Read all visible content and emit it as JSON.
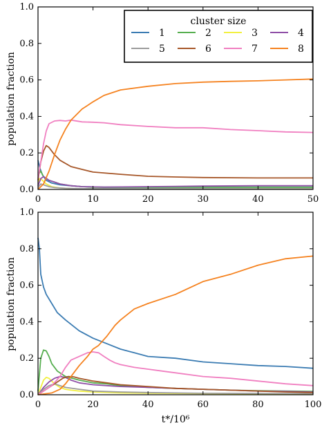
{
  "figure": {
    "xlabel": "t*/10⁶",
    "legend_title": "cluster size"
  },
  "series_meta": [
    {
      "name": "1",
      "color": "#3a7bb2"
    },
    {
      "name": "2",
      "color": "#56ae4f"
    },
    {
      "name": "3",
      "color": "#f2f040"
    },
    {
      "name": "4",
      "color": "#8e4ea6"
    },
    {
      "name": "5",
      "color": "#9b9b9b"
    },
    {
      "name": "6",
      "color": "#a65628"
    },
    {
      "name": "7",
      "color": "#f07ec0"
    },
    {
      "name": "8",
      "color": "#f5821f"
    }
  ],
  "chart_data": [
    {
      "type": "line",
      "title": "",
      "xlabel": "",
      "ylabel": "population fraction",
      "xlim": [
        0,
        50
      ],
      "ylim": [
        0,
        1.0
      ],
      "xticks": [
        "0",
        "10",
        "20",
        "30",
        "40",
        "50"
      ],
      "yticks": [
        "0.0",
        "0.2",
        "0.4",
        "0.6",
        "0.8",
        "1.0"
      ],
      "grid": false,
      "legend": "top-right",
      "series": [
        {
          "name": "1",
          "x": [
            0,
            0.3,
            0.8,
            1.5,
            2.5,
            4,
            6,
            8,
            12,
            20,
            30,
            40,
            50
          ],
          "y": [
            0.16,
            0.12,
            0.08,
            0.05,
            0.035,
            0.025,
            0.02,
            0.015,
            0.012,
            0.012,
            0.012,
            0.012,
            0.012
          ]
        },
        {
          "name": "2",
          "x": [
            0,
            0.5,
            1,
            2,
            3,
            4,
            5,
            6,
            8,
            10,
            20,
            30,
            40,
            50
          ],
          "y": [
            0.08,
            0.1,
            0.07,
            0.05,
            0.04,
            0.03,
            0.025,
            0.02,
            0.015,
            0.012,
            0.012,
            0.012,
            0.012,
            0.012
          ]
        },
        {
          "name": "3",
          "x": [
            0,
            0.3,
            0.8,
            1.5,
            2.5,
            4,
            6,
            10,
            50
          ],
          "y": [
            0.04,
            0.06,
            0.05,
            0.03,
            0.015,
            0.008,
            0.004,
            0.003,
            0.003
          ]
        },
        {
          "name": "4",
          "x": [
            0,
            0.5,
            1,
            2,
            3,
            4,
            6,
            8,
            12,
            20,
            30,
            40,
            50
          ],
          "y": [
            0.02,
            0.06,
            0.07,
            0.05,
            0.04,
            0.03,
            0.02,
            0.015,
            0.013,
            0.015,
            0.018,
            0.02,
            0.02
          ]
        },
        {
          "name": "5",
          "x": [
            0,
            0.5,
            1,
            2,
            3,
            5,
            8,
            50
          ],
          "y": [
            0.01,
            0.03,
            0.025,
            0.015,
            0.01,
            0.006,
            0.004,
            0.003
          ]
        },
        {
          "name": "6",
          "x": [
            0,
            0.5,
            1,
            1.5,
            2,
            3,
            4,
            6,
            8,
            10,
            15,
            20,
            25,
            30,
            40,
            50
          ],
          "y": [
            0.05,
            0.15,
            0.21,
            0.24,
            0.23,
            0.19,
            0.16,
            0.125,
            0.11,
            0.095,
            0.083,
            0.072,
            0.068,
            0.065,
            0.063,
            0.063
          ]
        },
        {
          "name": "7",
          "x": [
            0,
            0.5,
            1,
            1.5,
            2,
            3,
            4,
            5,
            6,
            8,
            10,
            12,
            15,
            20,
            25,
            30,
            35,
            40,
            45,
            50
          ],
          "y": [
            0.06,
            0.15,
            0.25,
            0.32,
            0.36,
            0.375,
            0.378,
            0.375,
            0.38,
            0.37,
            0.368,
            0.365,
            0.355,
            0.345,
            0.338,
            0.338,
            0.328,
            0.322,
            0.315,
            0.312
          ]
        },
        {
          "name": "8",
          "x": [
            0,
            1,
            2,
            3,
            4,
            5,
            6,
            8,
            10,
            12,
            15,
            20,
            25,
            30,
            35,
            40,
            45,
            50
          ],
          "y": [
            0.0,
            0.03,
            0.1,
            0.19,
            0.27,
            0.33,
            0.38,
            0.44,
            0.48,
            0.515,
            0.545,
            0.565,
            0.58,
            0.588,
            0.592,
            0.595,
            0.6,
            0.605
          ]
        }
      ]
    },
    {
      "type": "line",
      "title": "",
      "xlabel": "t*/10⁶",
      "ylabel": "population fraction",
      "xlim": [
        0,
        100
      ],
      "ylim": [
        0,
        1.0
      ],
      "xticks": [
        "0",
        "20",
        "40",
        "60",
        "80",
        "100"
      ],
      "yticks": [
        "0.0",
        "0.2",
        "0.4",
        "0.6",
        "0.8",
        "1.0"
      ],
      "grid": false,
      "legend": "none",
      "series": [
        {
          "name": "1",
          "x": [
            0,
            0.5,
            1,
            2,
            3,
            5,
            7,
            10,
            15,
            20,
            25,
            30,
            35,
            40,
            50,
            60,
            70,
            80,
            90,
            100
          ],
          "y": [
            0.86,
            0.8,
            0.66,
            0.59,
            0.55,
            0.5,
            0.45,
            0.41,
            0.35,
            0.31,
            0.28,
            0.25,
            0.23,
            0.21,
            0.2,
            0.18,
            0.17,
            0.16,
            0.155,
            0.145
          ]
        },
        {
          "name": "2",
          "x": [
            0,
            1,
            2,
            3,
            4,
            5,
            7,
            10,
            15,
            20,
            25,
            30,
            40,
            50,
            60,
            70,
            80,
            90,
            100
          ],
          "y": [
            0.02,
            0.2,
            0.245,
            0.24,
            0.21,
            0.17,
            0.13,
            0.1,
            0.08,
            0.065,
            0.06,
            0.05,
            0.04,
            0.035,
            0.03,
            0.025,
            0.022,
            0.02,
            0.018
          ]
        },
        {
          "name": "3",
          "x": [
            0,
            1,
            2,
            3,
            4,
            6,
            8,
            10,
            12,
            15,
            20,
            30,
            40,
            60,
            80,
            100
          ],
          "y": [
            0.0,
            0.04,
            0.08,
            0.095,
            0.09,
            0.06,
            0.04,
            0.03,
            0.025,
            0.02,
            0.015,
            0.01,
            0.008,
            0.006,
            0.005,
            0.005
          ]
        },
        {
          "name": "4",
          "x": [
            0,
            2,
            4,
            6,
            8,
            10,
            12,
            15,
            20,
            25,
            30,
            40,
            50,
            60,
            70,
            80,
            90,
            100
          ],
          "y": [
            0.0,
            0.04,
            0.07,
            0.09,
            0.1,
            0.095,
            0.08,
            0.065,
            0.055,
            0.05,
            0.045,
            0.04,
            0.035,
            0.03,
            0.025,
            0.02,
            0.018,
            0.015
          ]
        },
        {
          "name": "5",
          "x": [
            0,
            2,
            4,
            6,
            8,
            10,
            15,
            20,
            30,
            40,
            50,
            60,
            80,
            100
          ],
          "y": [
            0.0,
            0.03,
            0.05,
            0.06,
            0.05,
            0.04,
            0.03,
            0.02,
            0.015,
            0.012,
            0.01,
            0.008,
            0.007,
            0.006
          ]
        },
        {
          "name": "6",
          "x": [
            0,
            3,
            6,
            9,
            11,
            13,
            15,
            20,
            25,
            30,
            40,
            50,
            60,
            70,
            80,
            90,
            100
          ],
          "y": [
            0.0,
            0.03,
            0.06,
            0.09,
            0.1,
            0.098,
            0.09,
            0.075,
            0.065,
            0.055,
            0.045,
            0.035,
            0.03,
            0.025,
            0.02,
            0.015,
            0.012
          ]
        },
        {
          "name": "7",
          "x": [
            0,
            5,
            8,
            10,
            12,
            15,
            18,
            20,
            22,
            24,
            26,
            28,
            30,
            35,
            40,
            45,
            50,
            60,
            70,
            80,
            90,
            100
          ],
          "y": [
            0.0,
            0.05,
            0.1,
            0.15,
            0.19,
            0.21,
            0.23,
            0.235,
            0.23,
            0.21,
            0.19,
            0.175,
            0.165,
            0.15,
            0.14,
            0.13,
            0.12,
            0.1,
            0.09,
            0.075,
            0.06,
            0.05
          ]
        },
        {
          "name": "8",
          "x": [
            0,
            5,
            8,
            10,
            12,
            15,
            18,
            20,
            22,
            25,
            28,
            30,
            35,
            40,
            50,
            60,
            70,
            80,
            90,
            100
          ],
          "y": [
            0.0,
            0.01,
            0.03,
            0.06,
            0.1,
            0.16,
            0.21,
            0.25,
            0.27,
            0.32,
            0.38,
            0.41,
            0.47,
            0.5,
            0.55,
            0.62,
            0.66,
            0.71,
            0.745,
            0.76
          ]
        }
      ]
    }
  ]
}
